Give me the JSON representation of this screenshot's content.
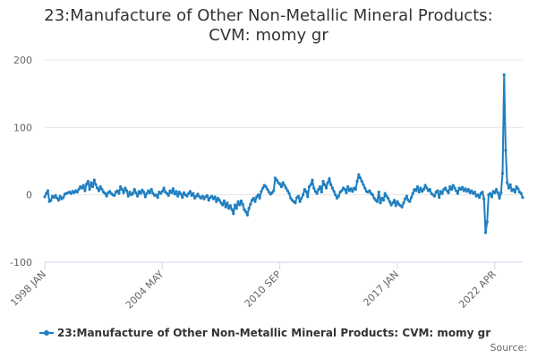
{
  "chart_data": {
    "type": "line",
    "title_lines": [
      "23:Manufacture of Other Non-Metallic Mineral Products:",
      "CVM: momy gr"
    ],
    "x_tick_labels": [
      "1998 JAN",
      "2004 MAY",
      "2010 SEP",
      "2017 JAN",
      "2022 APR"
    ],
    "x_tick_month_index": [
      0,
      76,
      152,
      228,
      291
    ],
    "y_ticks": [
      -100,
      0,
      100,
      200
    ],
    "ylim": [
      -100,
      200
    ],
    "legend_label": "23:Manufacture of Other Non-Metallic Mineral Products: CVM: momy gr",
    "source_label": "Source:",
    "series_color": "#1f7fc0",
    "grid": true,
    "series": [
      {
        "name": "23:Manufacture of Other Non-Metallic Mineral Products: CVM: momy gr",
        "values": [
          -3,
          2,
          6,
          -10,
          -8,
          -2,
          -4,
          -1,
          -5,
          -8,
          -2,
          -6,
          -4,
          1,
          2,
          3,
          4,
          2,
          5,
          3,
          6,
          4,
          8,
          12,
          10,
          14,
          6,
          16,
          20,
          8,
          18,
          12,
          22,
          15,
          10,
          6,
          12,
          8,
          4,
          2,
          -2,
          3,
          5,
          2,
          0,
          -1,
          4,
          6,
          2,
          12,
          8,
          3,
          10,
          6,
          -2,
          4,
          0,
          2,
          8,
          3,
          -2,
          5,
          2,
          7,
          4,
          -3,
          2,
          6,
          3,
          8,
          2,
          -1,
          0,
          -4,
          4,
          2,
          5,
          10,
          4,
          2,
          -1,
          6,
          3,
          9,
          1,
          5,
          -2,
          4,
          1,
          -4,
          3,
          0,
          -2,
          2,
          5,
          -1,
          2,
          -5,
          -2,
          1,
          -3,
          -5,
          -2,
          -6,
          -3,
          -1,
          -8,
          -4,
          -2,
          -6,
          -3,
          -10,
          -5,
          -8,
          -12,
          -15,
          -9,
          -18,
          -12,
          -20,
          -16,
          -22,
          -28,
          -15,
          -20,
          -10,
          -15,
          -9,
          -14,
          -22,
          -25,
          -30,
          -20,
          -14,
          -8,
          -5,
          -10,
          -3,
          0,
          -5,
          5,
          10,
          14,
          12,
          8,
          4,
          1,
          3,
          6,
          25,
          22,
          18,
          16,
          12,
          18,
          14,
          10,
          6,
          2,
          -5,
          -8,
          -10,
          -12,
          -4,
          -2,
          -10,
          -5,
          0,
          8,
          5,
          -3,
          12,
          15,
          22,
          10,
          5,
          2,
          8,
          12,
          4,
          20,
          15,
          10,
          18,
          24,
          15,
          10,
          5,
          0,
          -5,
          -2,
          4,
          6,
          10,
          8,
          3,
          12,
          6,
          9,
          5,
          10,
          8,
          20,
          30,
          25,
          20,
          15,
          10,
          5,
          4,
          6,
          2,
          0,
          -5,
          -8,
          -10,
          4,
          -12,
          -5,
          -8,
          2,
          -2,
          -5,
          -10,
          -15,
          -12,
          -8,
          -16,
          -10,
          -14,
          -16,
          -18,
          -12,
          -6,
          -2,
          -8,
          -10,
          -4,
          2,
          8,
          6,
          12,
          4,
          10,
          5,
          8,
          14,
          10,
          6,
          8,
          2,
          0,
          -2,
          4,
          6,
          -4,
          5,
          2,
          8,
          10,
          6,
          3,
          12,
          8,
          14,
          10,
          6,
          2,
          10,
          8,
          11,
          6,
          9,
          5,
          8,
          3,
          6,
          2,
          4,
          -2,
          0,
          -4,
          2,
          4,
          -6,
          -56,
          -40,
          0,
          2,
          -3,
          5,
          3,
          8,
          3,
          -5,
          3,
          32,
          178,
          66,
          18,
          10,
          15,
          6,
          8,
          4,
          12,
          9,
          4,
          2,
          -4
        ]
      }
    ]
  }
}
